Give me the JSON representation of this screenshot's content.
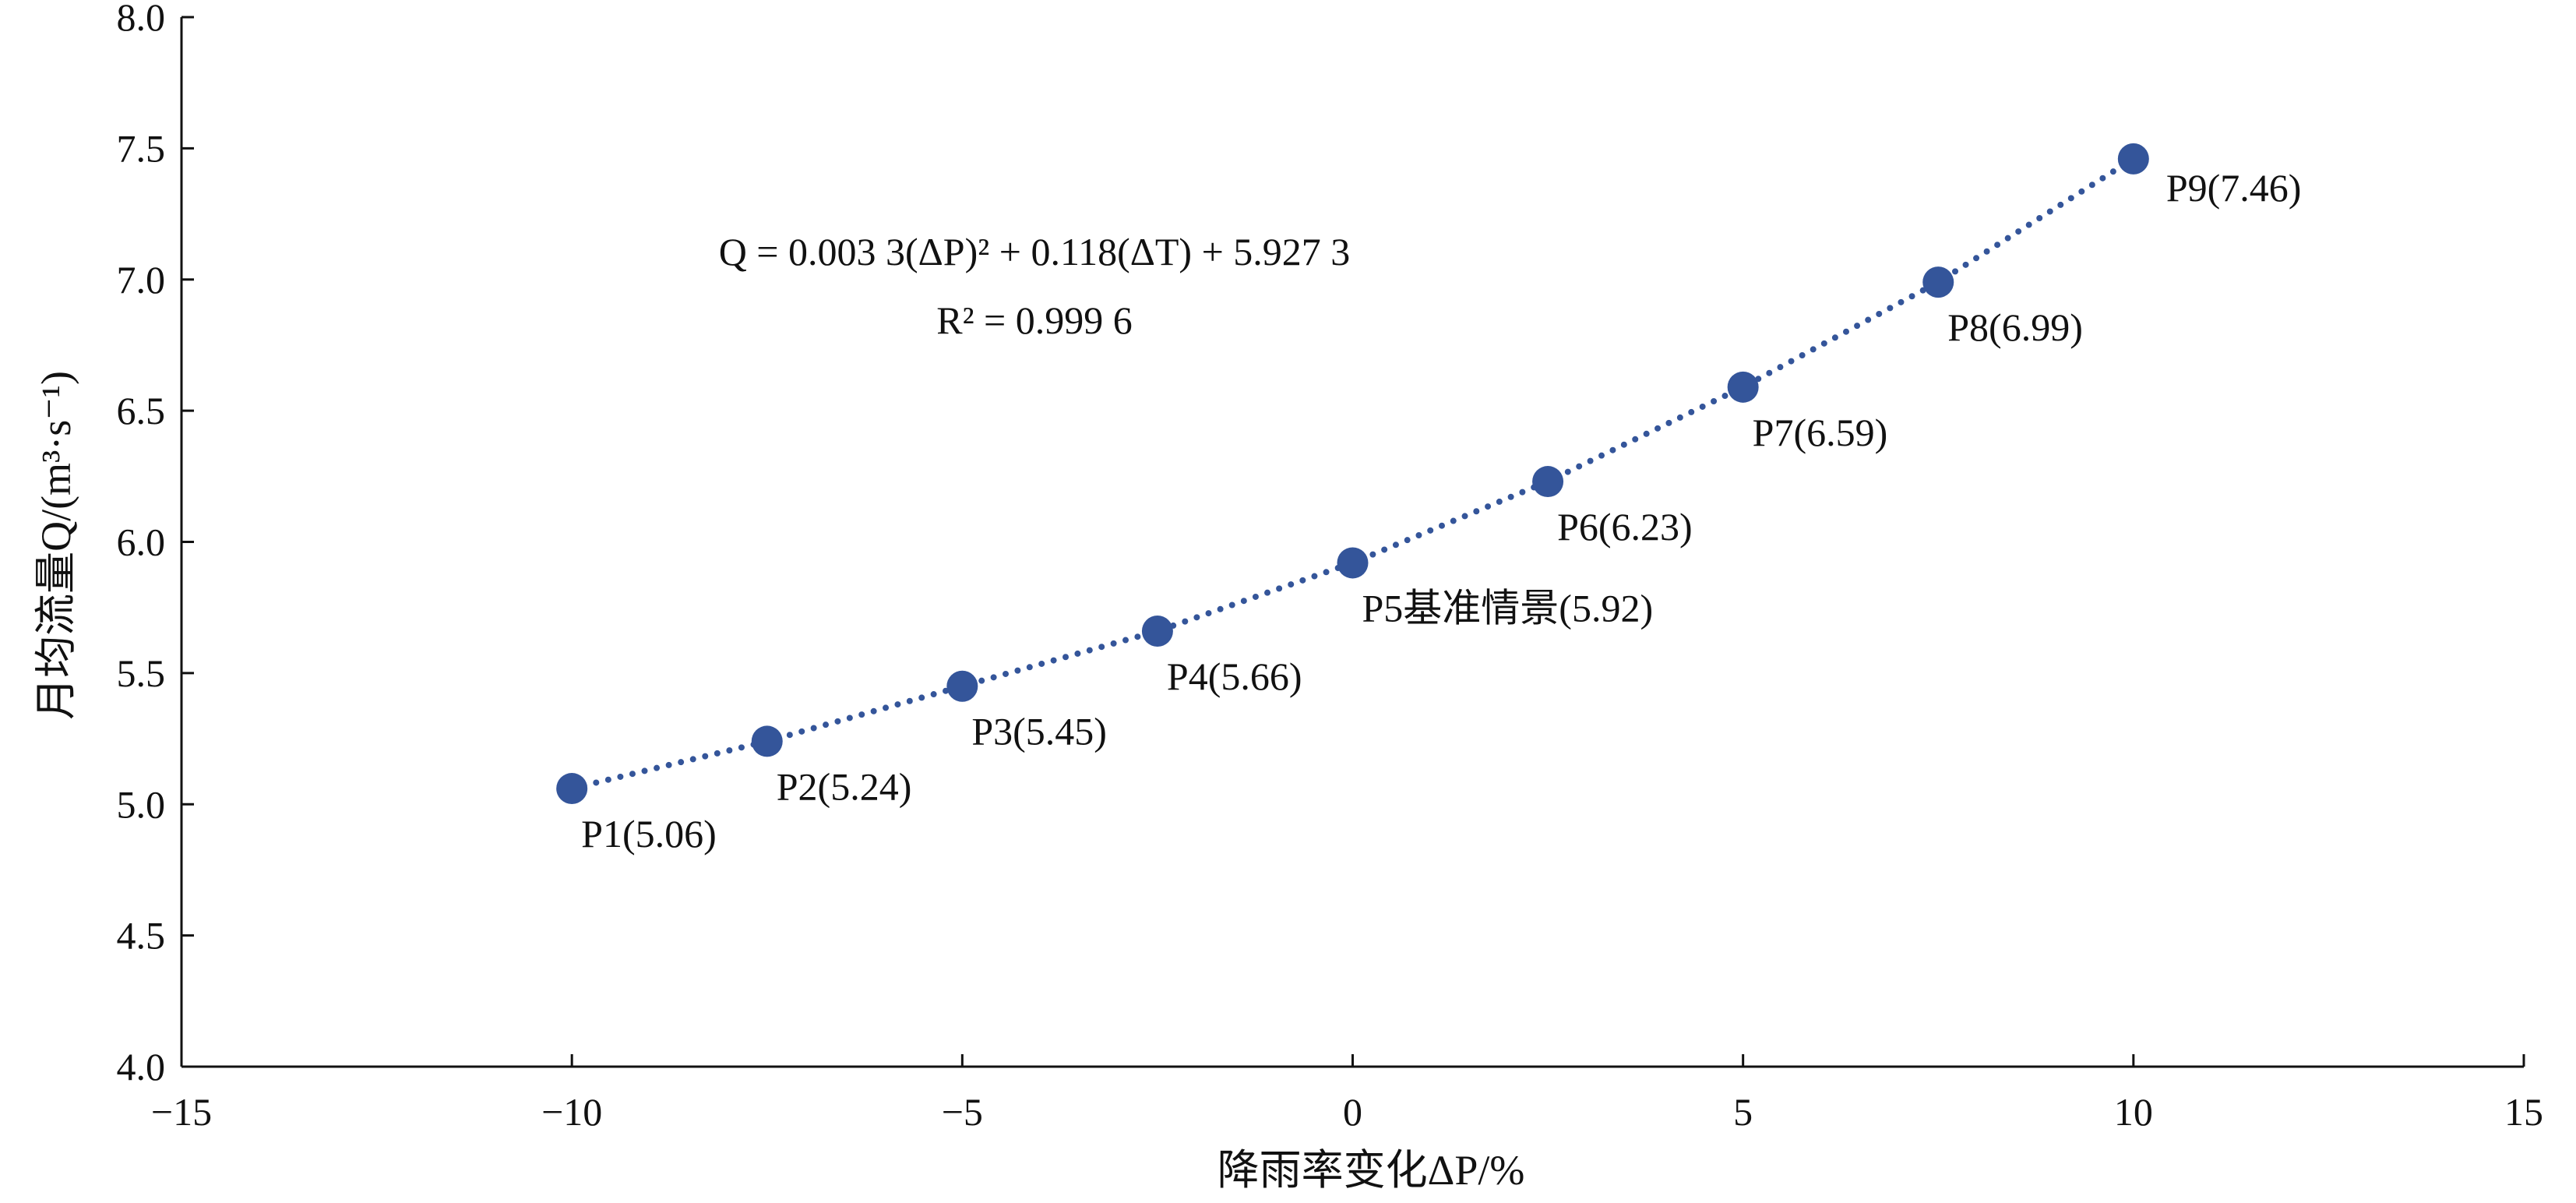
{
  "chart_data": {
    "type": "scatter",
    "title": "",
    "xlabel": "降雨率变化ΔP/%",
    "ylabel": "月均流量Q/(m³·s⁻¹)",
    "xlim": [
      -15,
      15
    ],
    "ylim": [
      4.0,
      8.0
    ],
    "xticks": [
      -15,
      -10,
      -5,
      0,
      5,
      10,
      15
    ],
    "yticks": [
      4.0,
      4.5,
      5.0,
      5.5,
      6.0,
      6.5,
      7.0,
      7.5,
      8.0
    ],
    "xtick_labels": [
      "−15",
      "−10",
      "−5",
      "0",
      "5",
      "10",
      "15"
    ],
    "ytick_labels": [
      "4.0",
      "4.5",
      "5.0",
      "5.5",
      "6.0",
      "6.5",
      "7.0",
      "7.5",
      "8.0"
    ],
    "grid": false,
    "points": [
      {
        "label": "P1(5.06)",
        "x": -10,
        "y": 5.06
      },
      {
        "label": "P2(5.24)",
        "x": -7.5,
        "y": 5.24
      },
      {
        "label": "P3(5.45)",
        "x": -5,
        "y": 5.45
      },
      {
        "label": "P4(5.66)",
        "x": -2.5,
        "y": 5.66
      },
      {
        "label": "P5基准情景(5.92)",
        "x": 0,
        "y": 5.92
      },
      {
        "label": "P6(6.23)",
        "x": 2.5,
        "y": 6.23
      },
      {
        "label": "P7(6.59)",
        "x": 5,
        "y": 6.59
      },
      {
        "label": "P8(6.99)",
        "x": 7.5,
        "y": 6.99
      },
      {
        "label": "P9(7.46)",
        "x": 10,
        "y": 7.46
      }
    ],
    "trendline": {
      "kind": "polynomial",
      "coefficients": {
        "a": 0.0033,
        "b": 0.118,
        "c": 5.9273
      },
      "range": [
        -10,
        10
      ],
      "style": "dotted"
    },
    "annotations": {
      "equation": "Q = 0.003 3(ΔP)² + 0.118(ΔT) + 5.927 3",
      "r_squared": "R² = 0.999 6"
    },
    "colors": {
      "marker": "#34559a",
      "trendline": "#34559a",
      "axis": "#111111"
    }
  }
}
